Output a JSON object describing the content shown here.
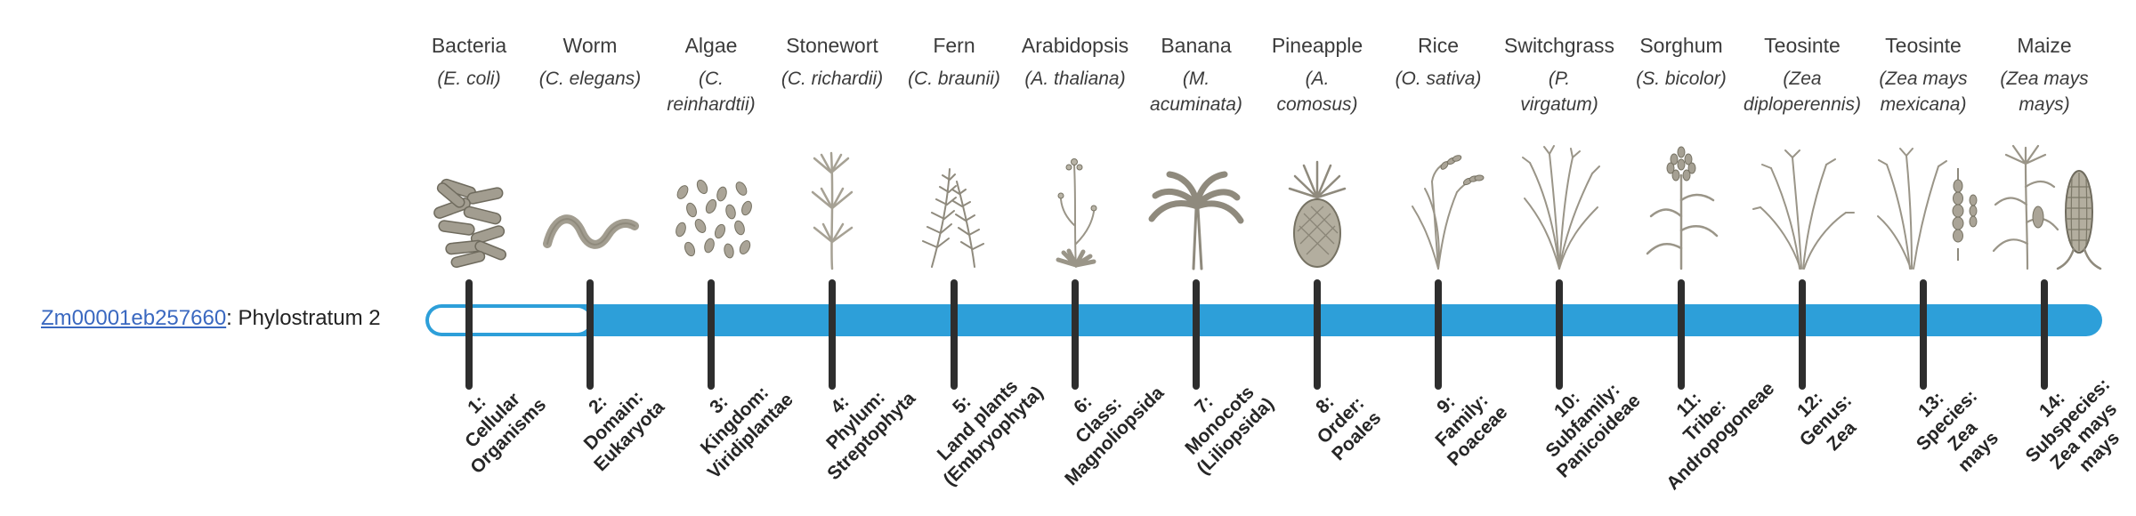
{
  "gene": {
    "link_text": "Zm00001eb257660",
    "suffix": ": Phylostratum 2"
  },
  "colors": {
    "bar_fill": "#2D9FD9",
    "bar_empty": "#FFFFFF",
    "tick": "#2E2E2E",
    "link": "#3A68C0",
    "text": "#3B3B3B"
  },
  "timeline": {
    "filled_from_stratum": 2,
    "total_strata": 14
  },
  "organisms": [
    {
      "name": "Bacteria",
      "sci_lines": [
        "(E. coli)"
      ],
      "icon": "bacteria-icon"
    },
    {
      "name": "Worm",
      "sci_lines": [
        "(C. elegans)"
      ],
      "icon": "worm-icon"
    },
    {
      "name": "Algae",
      "sci_lines": [
        "(C.",
        "reinhardtii)"
      ],
      "icon": "algae-icon"
    },
    {
      "name": "Stonewort",
      "sci_lines": [
        "(C. richardii)"
      ],
      "icon": "stonewort-icon"
    },
    {
      "name": "Fern",
      "sci_lines": [
        "(C. braunii)"
      ],
      "icon": "fern-icon"
    },
    {
      "name": "Arabidopsis",
      "sci_lines": [
        "(A. thaliana)"
      ],
      "icon": "arabidopsis-icon"
    },
    {
      "name": "Banana",
      "sci_lines": [
        "(M.",
        "acuminata)"
      ],
      "icon": "banana-icon"
    },
    {
      "name": "Pineapple",
      "sci_lines": [
        "(A.",
        "comosus)"
      ],
      "icon": "pineapple-icon"
    },
    {
      "name": "Rice",
      "sci_lines": [
        "(O. sativa)"
      ],
      "icon": "rice-icon"
    },
    {
      "name": "Switchgrass",
      "sci_lines": [
        "(P.",
        "virgatum)"
      ],
      "icon": "switchgrass-icon"
    },
    {
      "name": "Sorghum",
      "sci_lines": [
        "(S. bicolor)"
      ],
      "icon": "sorghum-icon"
    },
    {
      "name": "Teosinte",
      "sci_lines": [
        "(Zea",
        "diploperennis)"
      ],
      "icon": "teosinte-icon"
    },
    {
      "name": "Teosinte",
      "sci_lines": [
        "(Zea mays",
        "mexicana)"
      ],
      "icon": "teosinte-mexicana-icon"
    },
    {
      "name": "Maize",
      "sci_lines": [
        "(Zea mays",
        "mays)"
      ],
      "icon": "maize-icon"
    }
  ],
  "strata": [
    {
      "lines": [
        "1:",
        "Cellular",
        "Organisms"
      ]
    },
    {
      "lines": [
        "2:",
        "Domain:",
        "Eukaryota"
      ]
    },
    {
      "lines": [
        "3:",
        "Kingdom:",
        "Viridiplantae"
      ]
    },
    {
      "lines": [
        "4:",
        "Phylum:",
        "Streptophyta"
      ]
    },
    {
      "lines": [
        "5:",
        "Land plants",
        "(Embryophyta)"
      ]
    },
    {
      "lines": [
        "6:",
        "Class:",
        "Magnoliopsida"
      ]
    },
    {
      "lines": [
        "7:",
        "Monocots",
        "(Liliopsida)"
      ]
    },
    {
      "lines": [
        "8:",
        "Order:",
        "Poales"
      ]
    },
    {
      "lines": [
        "9:",
        "Family:",
        "Poaceae"
      ]
    },
    {
      "lines": [
        "10:",
        "Subfamily:",
        "Panicoideae"
      ]
    },
    {
      "lines": [
        "11:",
        "Tribe:",
        "Andropogoneae"
      ]
    },
    {
      "lines": [
        "12:",
        "Genus:",
        "Zea"
      ]
    },
    {
      "lines": [
        "13:",
        "Species:",
        "Zea",
        "mays"
      ]
    },
    {
      "lines": [
        "14:",
        "Subspecies:",
        "Zea mays",
        "mays"
      ]
    }
  ]
}
